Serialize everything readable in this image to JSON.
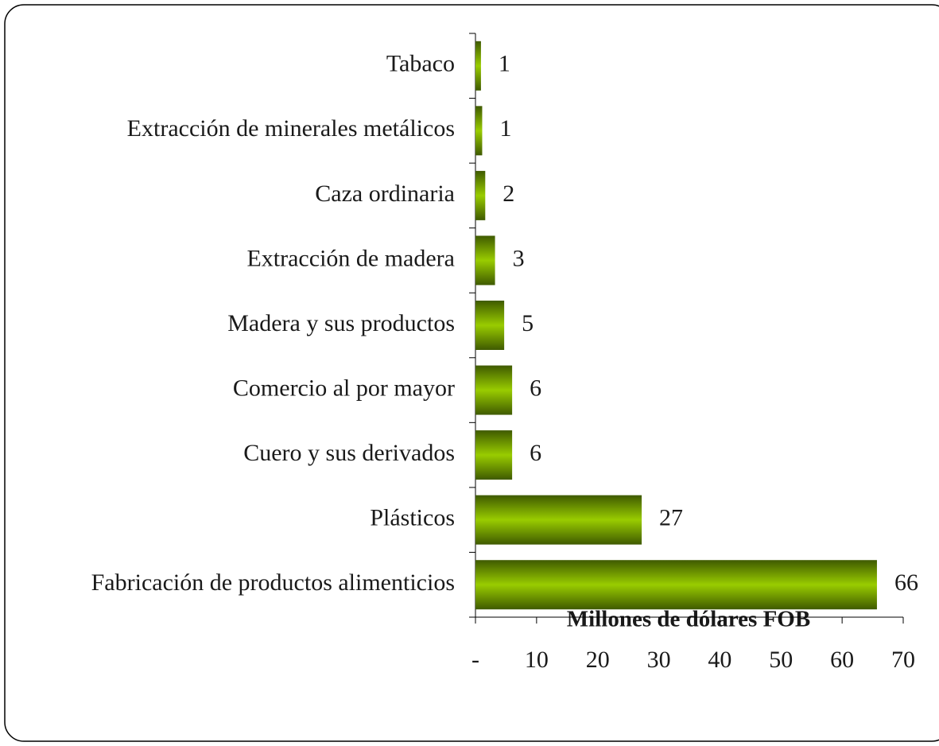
{
  "chart_data": {
    "type": "barh",
    "categories": [
      "Tabaco",
      "Extracción de minerales metálicos",
      "Caza ordinaria",
      "Extracción de madera",
      "Madera y sus productos",
      "Comercio al por mayor",
      "Cuero y sus derivados",
      "Plásticos",
      "Fabricación de productos alimenticios"
    ],
    "values": [
      0.9,
      1.1,
      1.6,
      3.2,
      4.7,
      6.0,
      6.0,
      27.2,
      65.7
    ],
    "value_labels": [
      "1",
      "1",
      "2",
      "3",
      "5",
      "6",
      "6",
      "27",
      "66"
    ],
    "color": "#99cc00",
    "x_label": "Millones de dólares FOB",
    "xlim": [
      0,
      70
    ],
    "xticks": [
      {
        "value": 0,
        "label": "-"
      },
      10,
      20,
      30,
      40,
      50,
      60,
      70
    ]
  }
}
